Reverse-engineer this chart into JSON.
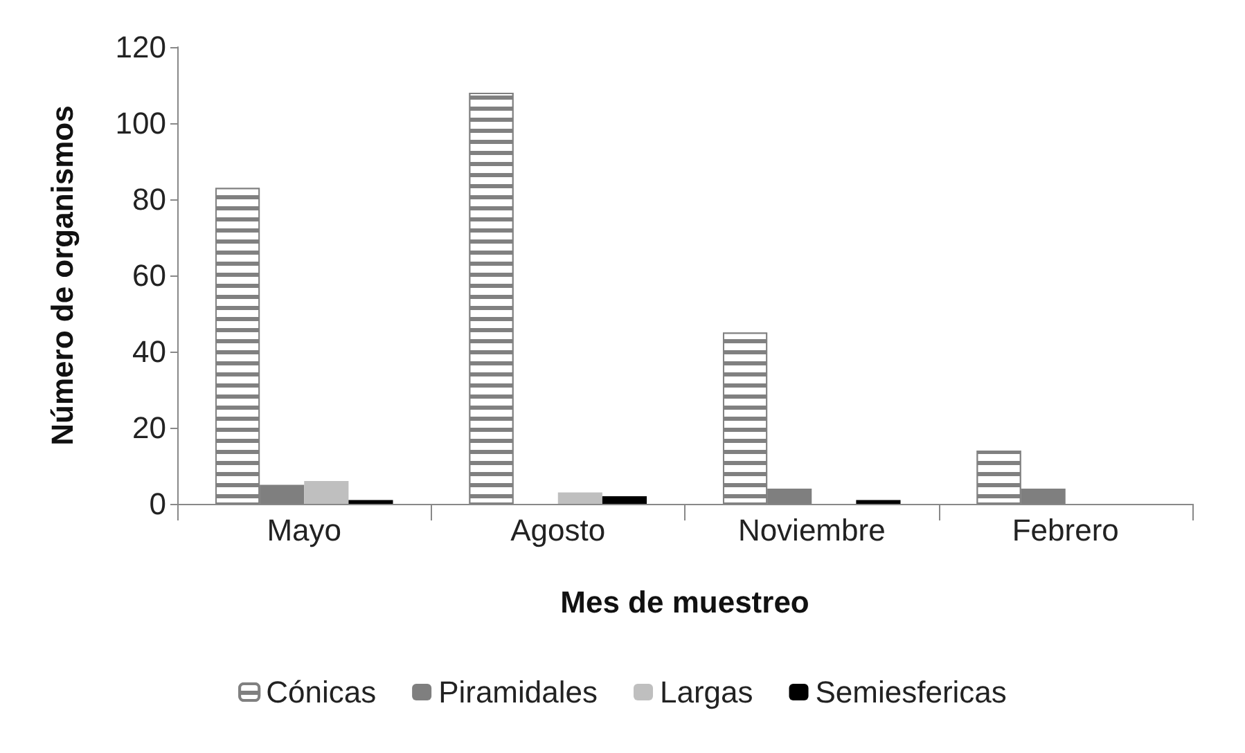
{
  "chart_data": {
    "type": "bar",
    "xlabel": "Mes de muestreo",
    "ylabel": "Número de organismos",
    "categories": [
      "Mayo",
      "Agosto",
      "Noviembre",
      "Febrero"
    ],
    "series": [
      {
        "name": "Cónicas",
        "color": "#808080",
        "values": [
          83,
          108,
          45,
          14
        ]
      },
      {
        "name": "Piramidales",
        "color": "#7f7f7f",
        "values": [
          5,
          0,
          4,
          4
        ]
      },
      {
        "name": "Largas",
        "color": "#bfbfbf",
        "values": [
          6,
          3,
          0,
          0
        ]
      },
      {
        "name": "Semiesfericas",
        "color": "#000000",
        "values": [
          1,
          2,
          1,
          0
        ]
      }
    ],
    "ylim": [
      0,
      120
    ],
    "yticks": [
      0,
      20,
      40,
      60,
      80,
      100,
      120
    ],
    "grid": false,
    "legend": "bottom"
  }
}
